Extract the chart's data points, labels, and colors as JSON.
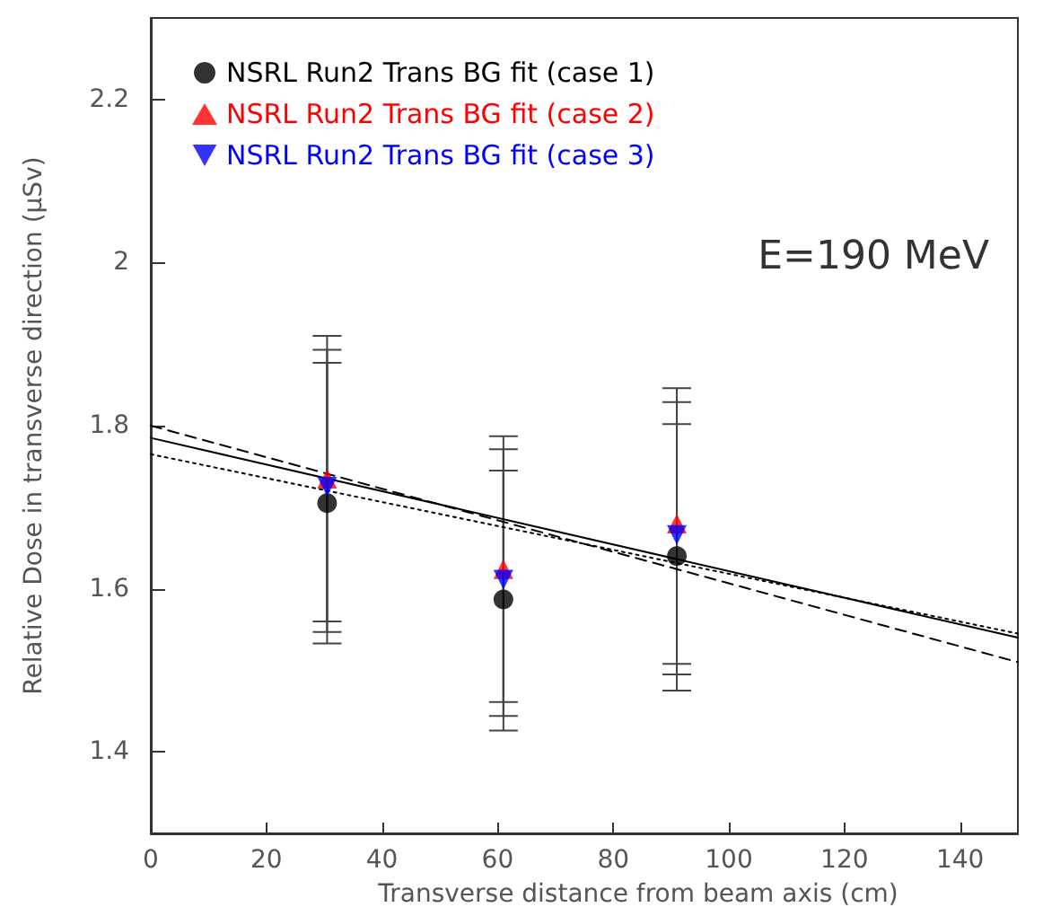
{
  "chart_data": {
    "type": "scatter",
    "xlabel": "Transverse distance from beam axis (cm)",
    "ylabel": "Relative Dose in transverse direction (μSv)",
    "annotations": [
      "E=190 MeV"
    ],
    "xlim": [
      0,
      150
    ],
    "xticks": [
      0,
      20,
      40,
      60,
      80,
      100,
      120,
      140
    ],
    "ylim": [
      1.3,
      2.3
    ],
    "yticks": [
      1.4,
      1.6,
      1.8,
      2,
      2.2
    ],
    "grid": false,
    "legend": "top left",
    "series": [
      {
        "name": "NSRL Run2 Trans BG fit (case 1)",
        "color": "#000000",
        "marker": "circle",
        "x": [
          30.5,
          61,
          91
        ],
        "values": [
          1.705,
          1.587,
          1.64
        ],
        "errors": [
          [
            1.533,
            1.877
          ],
          [
            1.426,
            1.745
          ],
          [
            1.475,
            1.802
          ]
        ]
      },
      {
        "name": "NSRL Run2 Trans BG fit (case 2)",
        "color": "#ff0000",
        "marker": "triangle",
        "x": [
          30.5,
          61,
          91
        ],
        "values": [
          1.735,
          1.624,
          1.68
        ],
        "errors": [
          [
            1.56,
            1.91
          ],
          [
            1.461,
            1.787
          ],
          [
            1.508,
            1.846
          ]
        ]
      },
      {
        "name": "NSRL Run2 Trans BG fit (case 3)",
        "color": "#0000ff",
        "marker": "triangle-down",
        "x": [
          30.5,
          61,
          91
        ],
        "values": [
          1.725,
          1.611,
          1.666
        ],
        "errors": [
          [
            1.547,
            1.893
          ],
          [
            1.444,
            1.771
          ],
          [
            1.495,
            1.829
          ]
        ]
      },
      {
        "type": "line",
        "color": "#000000",
        "line_style": "solid",
        "x": [
          0,
          150
        ],
        "values": [
          1.785,
          1.54
        ]
      },
      {
        "type": "line",
        "color": "#000000",
        "line_style": "dashed",
        "x": [
          0,
          150
        ],
        "values": [
          1.8,
          1.51
        ]
      },
      {
        "type": "line",
        "color": "#000000",
        "line_style": "dotted",
        "x": [
          0,
          150
        ],
        "values": [
          1.765,
          1.545
        ]
      }
    ]
  }
}
